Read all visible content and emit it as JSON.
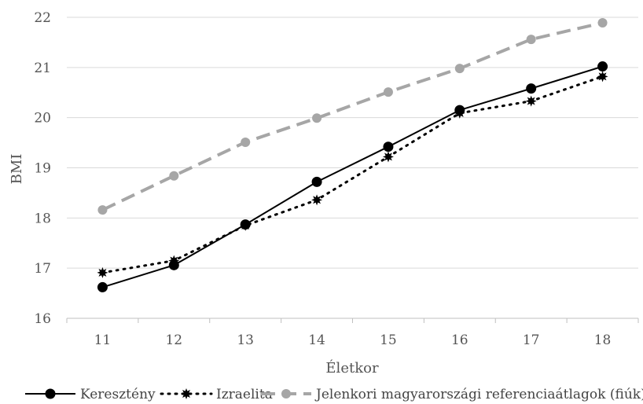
{
  "chart_data": {
    "type": "line",
    "title": "",
    "xlabel": "Életkor",
    "ylabel": "BMI",
    "categories": [
      "11",
      "12",
      "13",
      "14",
      "15",
      "16",
      "17",
      "18"
    ],
    "ylim": [
      16,
      22
    ],
    "yticks": [
      "16",
      "17",
      "18",
      "19",
      "20",
      "21",
      "22"
    ],
    "grid": "horizontal",
    "legend_position": "bottom",
    "series": [
      {
        "name": "Keresztény",
        "values": [
          16.62,
          17.06,
          17.87,
          18.72,
          19.42,
          20.15,
          20.58,
          21.02
        ],
        "color": "#000000",
        "line_style": "solid",
        "marker": "circle"
      },
      {
        "name": "Izraelita",
        "values": [
          16.91,
          17.15,
          17.85,
          18.36,
          19.22,
          20.09,
          20.33,
          20.82
        ],
        "color": "#000000",
        "line_style": "dotted",
        "marker": "star"
      },
      {
        "name": "Jelenkori magyarországi referenciaátlagok (fiúk)",
        "values": [
          18.16,
          18.84,
          19.51,
          19.99,
          20.51,
          20.98,
          21.56,
          21.89
        ],
        "color": "#a6a6a6",
        "line_style": "dashed",
        "marker": "circle"
      }
    ]
  }
}
